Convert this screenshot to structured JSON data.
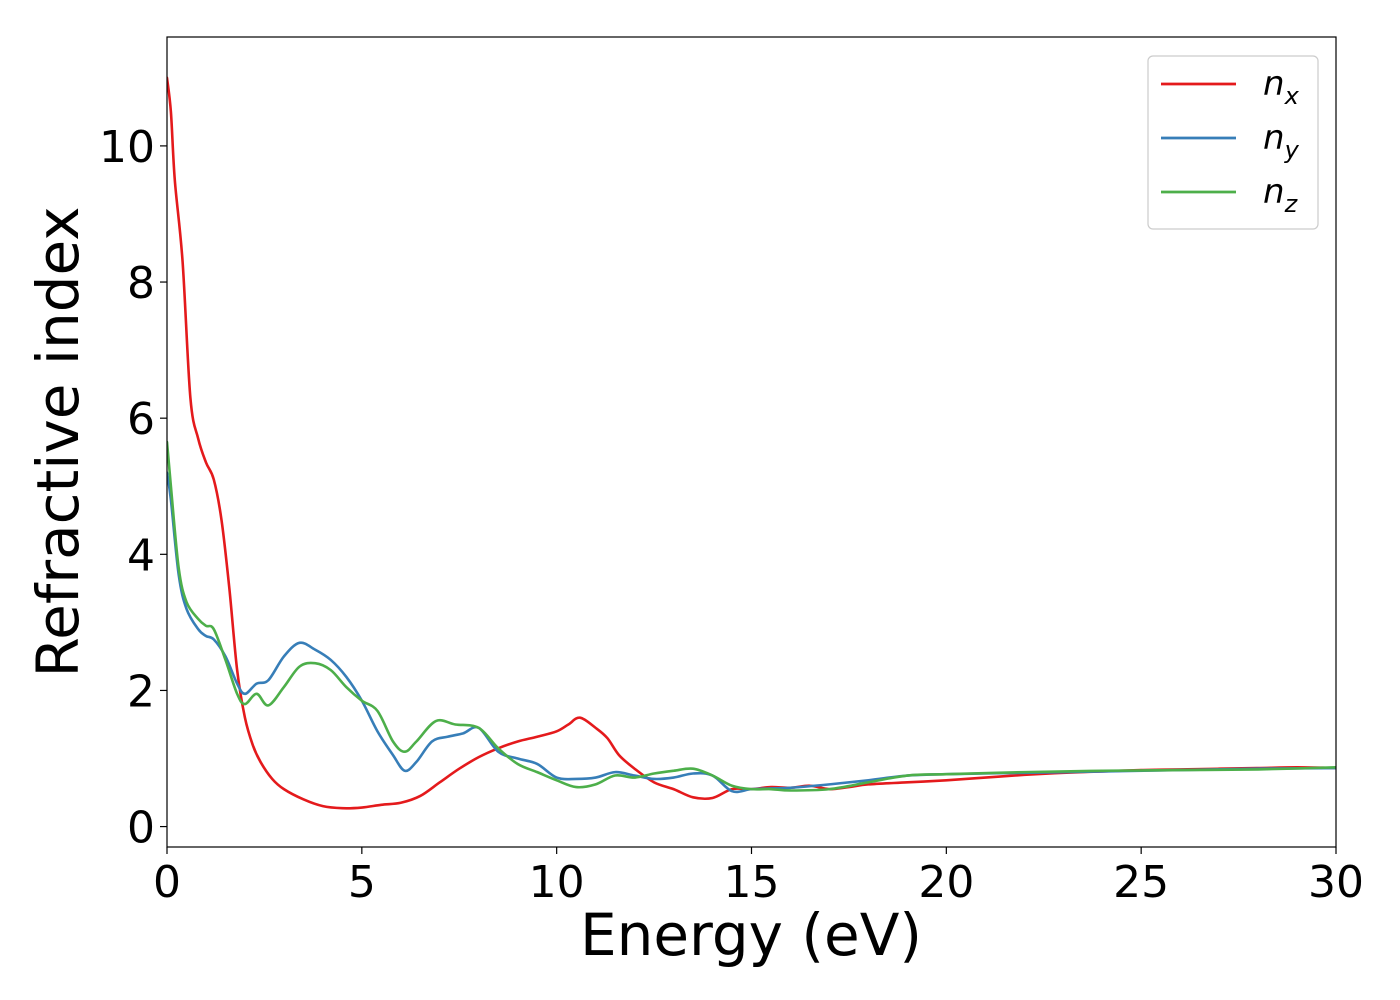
{
  "chart_data": {
    "type": "line",
    "xlabel": "Energy (eV)",
    "ylabel": "Refractive index",
    "xlim": [
      0,
      30
    ],
    "ylim": [
      -0.3,
      11.6
    ],
    "xticks": [
      0,
      5,
      10,
      15,
      20,
      25,
      30
    ],
    "yticks": [
      0,
      2,
      4,
      6,
      8,
      10
    ],
    "grid": false,
    "legend_position": "top-right",
    "series": [
      {
        "name": "n",
        "subscript": "x",
        "color": "#e41a1c",
        "x": [
          0,
          0.1,
          0.2,
          0.4,
          0.6,
          0.8,
          1.0,
          1.2,
          1.4,
          1.6,
          1.8,
          2.0,
          2.2,
          2.4,
          2.7,
          3.0,
          3.5,
          4.0,
          4.5,
          5.0,
          5.5,
          6.0,
          6.5,
          7.0,
          7.5,
          8.0,
          8.5,
          9.0,
          9.5,
          10.0,
          10.3,
          10.6,
          11.0,
          11.3,
          11.6,
          12.0,
          12.5,
          13.0,
          13.5,
          14.0,
          14.5,
          15.0,
          15.5,
          16.0,
          16.5,
          17.0,
          17.5,
          18.0,
          19.0,
          20.0,
          21.0,
          22.0,
          23.0,
          24.0,
          25.0,
          26.0,
          27.0,
          28.0,
          29.0,
          30.0
        ],
        "values": [
          11.0,
          10.5,
          9.5,
          8.3,
          6.3,
          5.7,
          5.35,
          5.1,
          4.5,
          3.5,
          2.3,
          1.6,
          1.2,
          0.95,
          0.7,
          0.55,
          0.4,
          0.3,
          0.27,
          0.28,
          0.32,
          0.35,
          0.45,
          0.65,
          0.85,
          1.02,
          1.15,
          1.25,
          1.32,
          1.4,
          1.5,
          1.6,
          1.45,
          1.3,
          1.05,
          0.85,
          0.65,
          0.55,
          0.43,
          0.42,
          0.55,
          0.55,
          0.58,
          0.57,
          0.6,
          0.55,
          0.58,
          0.62,
          0.65,
          0.68,
          0.72,
          0.76,
          0.79,
          0.81,
          0.83,
          0.84,
          0.85,
          0.86,
          0.87,
          0.86
        ]
      },
      {
        "name": "n",
        "subscript": "y",
        "color": "#377eb8",
        "x": [
          0,
          0.1,
          0.3,
          0.5,
          0.8,
          1.0,
          1.2,
          1.5,
          1.8,
          2.0,
          2.3,
          2.6,
          3.0,
          3.4,
          3.8,
          4.2,
          4.6,
          5.0,
          5.4,
          5.8,
          6.1,
          6.4,
          6.8,
          7.2,
          7.6,
          8.0,
          8.5,
          9.0,
          9.5,
          10.0,
          10.5,
          11.0,
          11.5,
          12.0,
          12.5,
          13.0,
          13.5,
          14.0,
          14.5,
          15.0,
          15.5,
          16.0,
          17.0,
          18.0,
          19.0,
          20.0,
          22.0,
          24.0,
          26.0,
          28.0,
          30.0
        ],
        "values": [
          5.2,
          4.8,
          3.7,
          3.2,
          2.9,
          2.8,
          2.75,
          2.5,
          2.1,
          1.95,
          2.1,
          2.15,
          2.5,
          2.7,
          2.6,
          2.45,
          2.2,
          1.85,
          1.4,
          1.05,
          0.82,
          0.95,
          1.25,
          1.32,
          1.37,
          1.45,
          1.1,
          1.0,
          0.92,
          0.72,
          0.7,
          0.72,
          0.8,
          0.75,
          0.7,
          0.72,
          0.78,
          0.75,
          0.52,
          0.55,
          0.56,
          0.57,
          0.62,
          0.68,
          0.75,
          0.77,
          0.79,
          0.81,
          0.83,
          0.85,
          0.86
        ]
      },
      {
        "name": "n",
        "subscript": "z",
        "color": "#4daf4a",
        "x": [
          0,
          0.1,
          0.3,
          0.5,
          0.8,
          1.0,
          1.2,
          1.5,
          1.8,
          2.0,
          2.3,
          2.6,
          3.0,
          3.4,
          3.8,
          4.2,
          4.6,
          5.0,
          5.4,
          5.8,
          6.1,
          6.4,
          6.9,
          7.4,
          8.0,
          8.5,
          9.0,
          9.5,
          10.0,
          10.5,
          11.0,
          11.5,
          12.0,
          12.5,
          13.0,
          13.5,
          14.0,
          14.5,
          15.0,
          15.5,
          16.0,
          17.0,
          18.0,
          19.0,
          20.0,
          22.0,
          24.0,
          26.0,
          28.0,
          30.0
        ],
        "values": [
          5.65,
          5.0,
          3.8,
          3.3,
          3.05,
          2.95,
          2.9,
          2.45,
          1.95,
          1.8,
          1.95,
          1.78,
          2.05,
          2.35,
          2.4,
          2.3,
          2.05,
          1.85,
          1.7,
          1.25,
          1.1,
          1.25,
          1.55,
          1.5,
          1.45,
          1.15,
          0.92,
          0.8,
          0.68,
          0.58,
          0.62,
          0.75,
          0.72,
          0.78,
          0.82,
          0.85,
          0.75,
          0.6,
          0.55,
          0.55,
          0.53,
          0.55,
          0.65,
          0.75,
          0.77,
          0.8,
          0.82,
          0.83,
          0.84,
          0.87
        ]
      }
    ]
  }
}
